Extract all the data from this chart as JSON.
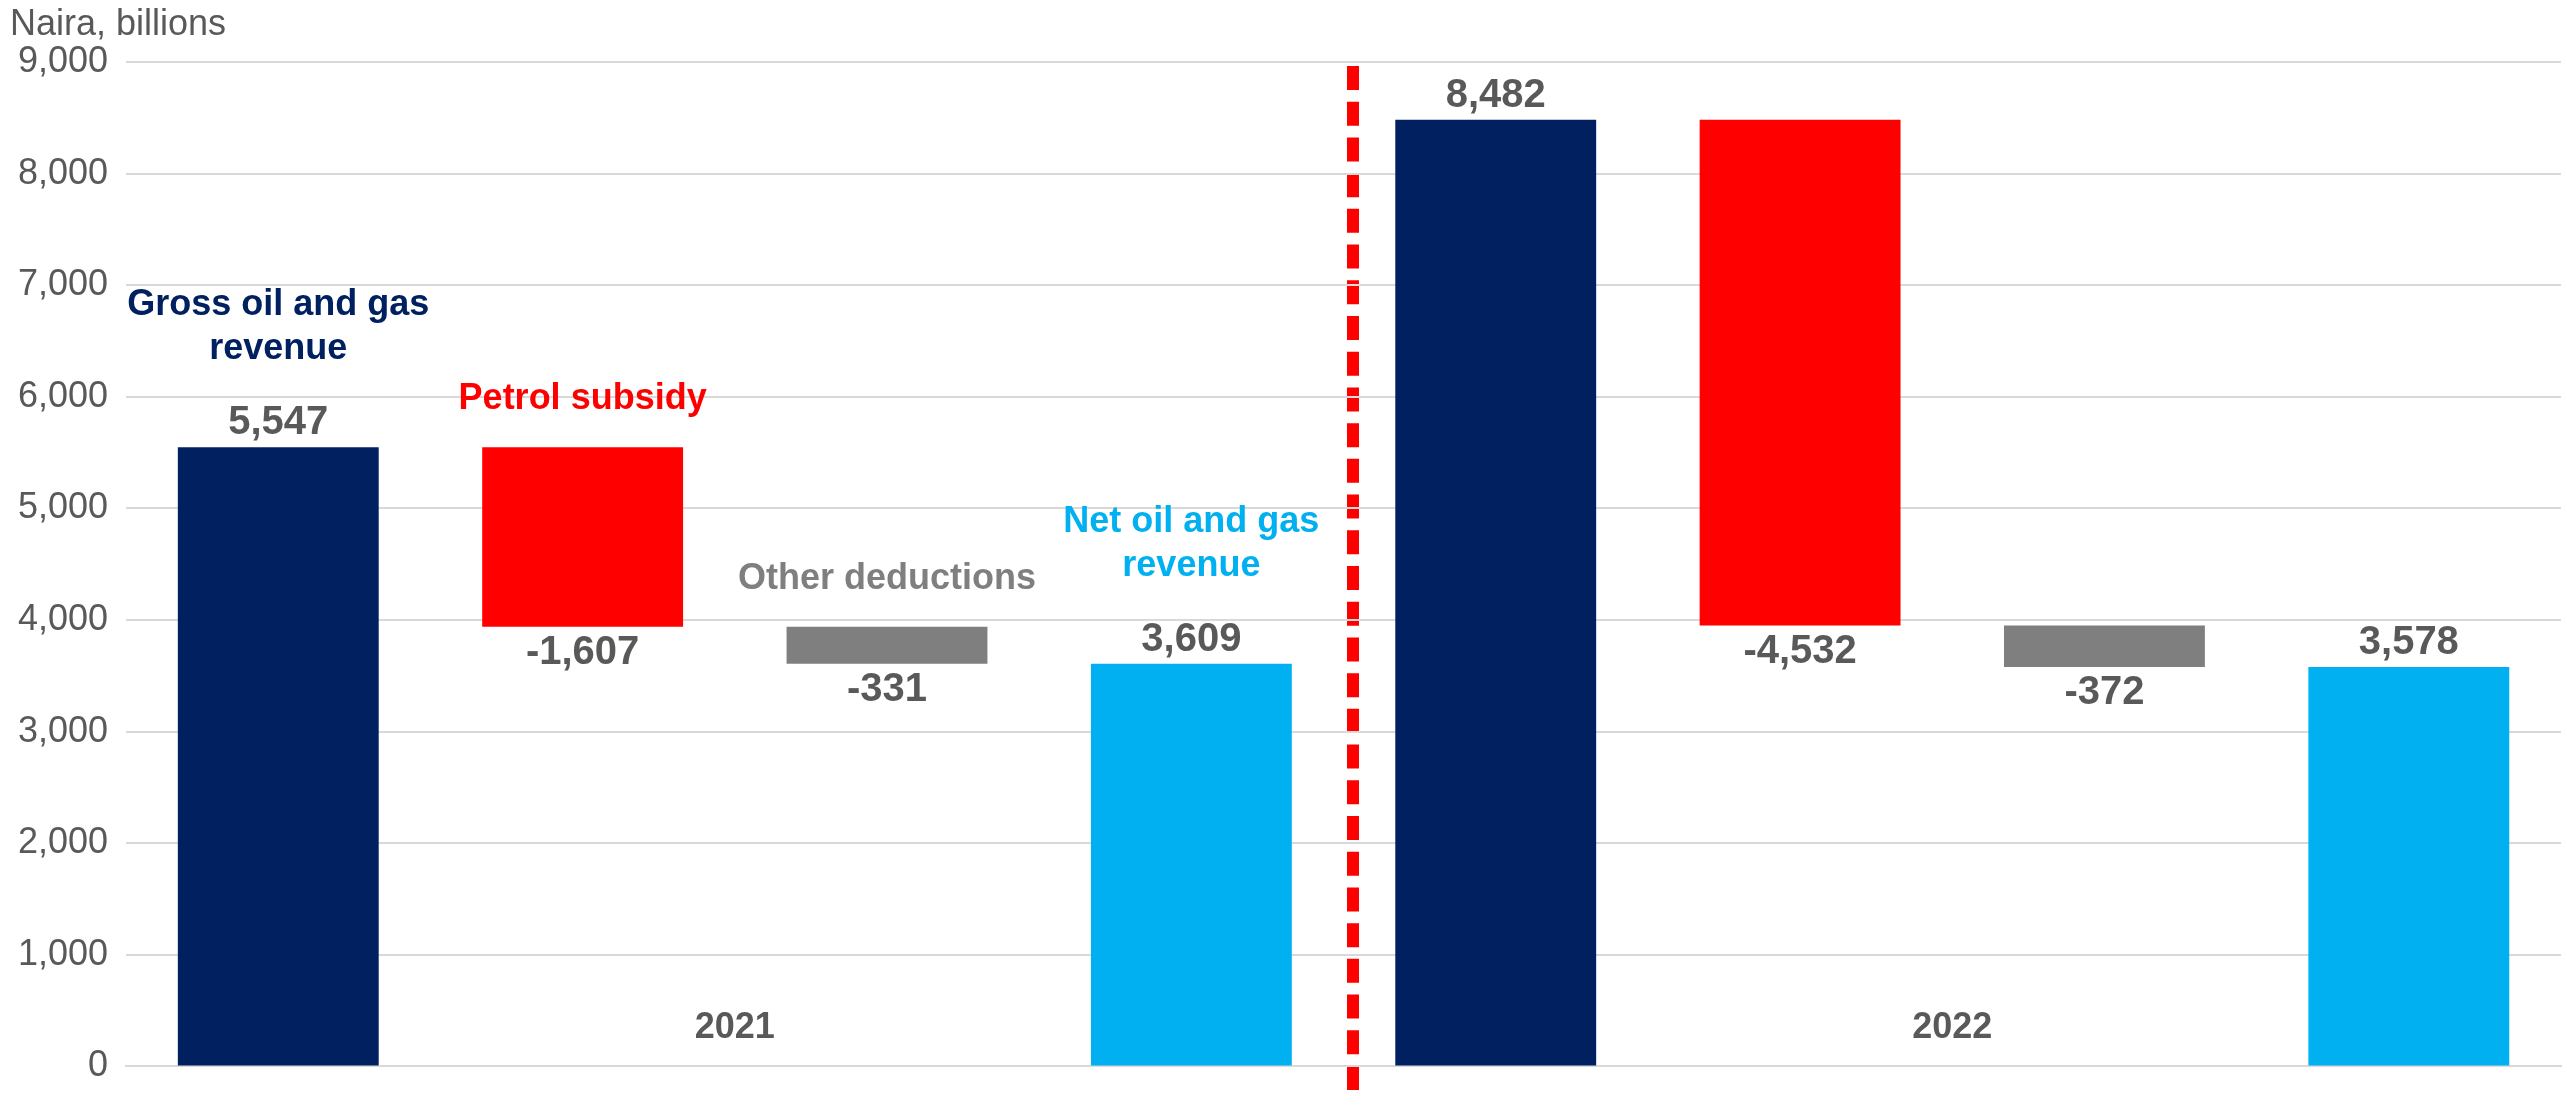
{
  "chart_data": {
    "type": "bar",
    "ylabel": "Naira, billions",
    "categories": [
      null,
      null,
      null,
      null,
      null,
      null,
      null,
      null
    ],
    "base": [
      0,
      5547,
      3940,
      0,
      0,
      8482,
      3950,
      0
    ],
    "values": [
      5547,
      -1607,
      -331,
      3609,
      8482,
      -4532,
      -372,
      3578
    ],
    "colors": [
      "#002060",
      "#ff0000",
      "#7f7f7f",
      "#00b0f0",
      "#002060",
      "#ff0000",
      "#7f7f7f",
      "#00b0f0"
    ],
    "value_labels": [
      "5,547",
      "-1,607",
      "-331",
      "3,609",
      "8,482",
      "-4,532",
      "-372",
      "3,578"
    ],
    "annotations": [
      "Gross oil and gas revenue",
      "Petrol subsidy",
      "Other deductions",
      "Net oil and gas revenue",
      "2021",
      "2022"
    ],
    "ylim": [
      0,
      9000
    ],
    "yticks": [
      {
        "value": 0,
        "label": "0"
      },
      {
        "value": 1000,
        "label": "1,000"
      },
      {
        "value": 2000,
        "label": "2,000"
      },
      {
        "value": 3000,
        "label": "3,000"
      },
      {
        "value": 4000,
        "label": "4,000"
      },
      {
        "value": 5000,
        "label": "5,000"
      },
      {
        "value": 6000,
        "label": "6,000"
      },
      {
        "value": 7000,
        "label": "7,000"
      },
      {
        "value": 8000,
        "label": "8,000"
      },
      {
        "value": 9000,
        "label": "9,000"
      }
    ],
    "grid": "y",
    "legend": false
  }
}
